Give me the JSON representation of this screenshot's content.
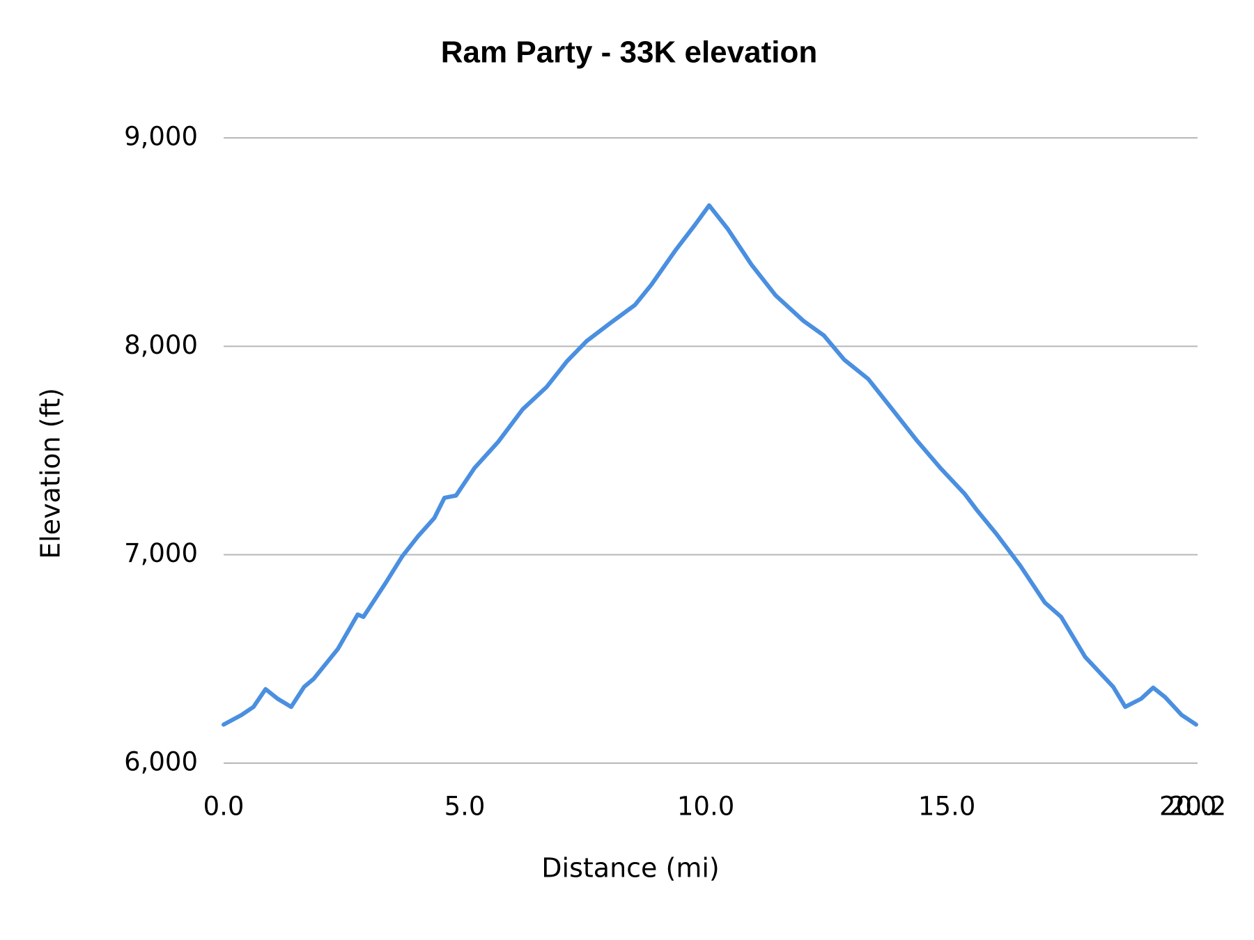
{
  "chart_data": {
    "type": "line",
    "title": "Ram Party - 33K elevation",
    "x_label": "Distance (mi)",
    "y_label": "Elevation (ft)",
    "x": [
      0,
      0.37,
      0.62,
      0.87,
      1.12,
      1.4,
      1.67,
      1.87,
      2.37,
      2.78,
      2.9,
      3.37,
      3.7,
      4.03,
      4.37,
      4.58,
      4.82,
      5.2,
      5.7,
      6.2,
      6.7,
      7.12,
      7.53,
      8.03,
      8.53,
      8.87,
      9.37,
      9.78,
      10.07,
      10.45,
      10.95,
      11.45,
      12.03,
      12.45,
      12.87,
      13.37,
      13.87,
      14.37,
      14.87,
      15.37,
      15.62,
      16.03,
      16.53,
      17.03,
      17.37,
      17.87,
      18.45,
      18.7,
      19.03,
      19.28,
      19.53,
      19.87,
      20.17
    ],
    "series": [
      {
        "name": "Elevation",
        "color": "#4a8fe0",
        "values": [
          6185,
          6231,
          6270,
          6355,
          6309,
          6270,
          6366,
          6405,
          6548,
          6713,
          6702,
          6868,
          6991,
          7088,
          7176,
          7273,
          7284,
          7415,
          7543,
          7697,
          7805,
          7928,
          8025,
          8113,
          8198,
          8295,
          8460,
          8584,
          8676,
          8565,
          8391,
          8244,
          8121,
          8052,
          7936,
          7843,
          7697,
          7550,
          7415,
          7292,
          7215,
          7099,
          6945,
          6771,
          6702,
          6509,
          6366,
          6270,
          6309,
          6362,
          6316,
          6231,
          6185
        ]
      }
    ],
    "xlim": [
      0,
      20.2
    ],
    "xticks": [
      {
        "value": 0,
        "label": "0.0"
      },
      {
        "value": 5,
        "label": "5.0"
      },
      {
        "value": 10,
        "label": "10.0"
      },
      {
        "value": 15,
        "label": "15.0"
      },
      {
        "value": 20,
        "label": "20.0"
      },
      20.2
    ],
    "ylim": [
      6000,
      9000
    ],
    "yticks": [
      {
        "value": 6000,
        "label": "6,000"
      },
      {
        "value": 7000,
        "label": "7,000"
      },
      {
        "value": 8000,
        "label": "8,000"
      },
      {
        "value": 9000,
        "label": "9,000"
      }
    ],
    "grid": true
  }
}
